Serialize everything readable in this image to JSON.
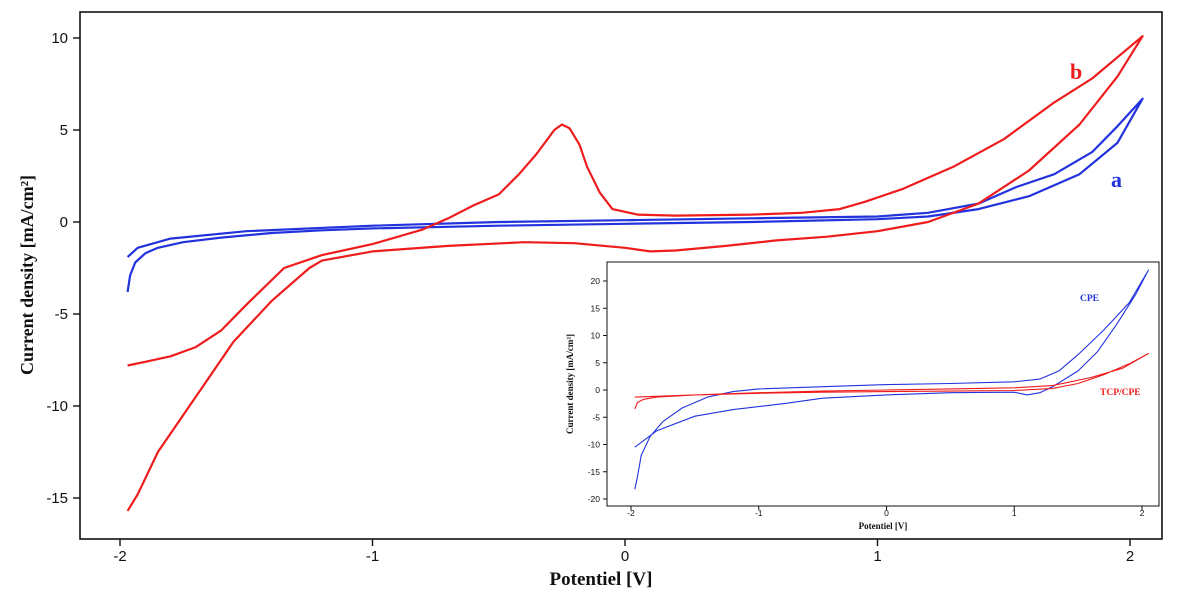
{
  "colors": {
    "a": "#2233dd",
    "b": "#ee1c1c",
    "axis": "#111111"
  },
  "chart_data": [
    {
      "type": "line",
      "xlabel": "Potentiel [V]",
      "ylabel": "Current density [mA/cm²]",
      "xlim": [
        -2.0,
        2.0
      ],
      "ylim": [
        -16.5,
        10.8
      ],
      "xticks": [
        -2,
        -1,
        0,
        1,
        2
      ],
      "yticks": [
        10,
        5,
        0,
        -5,
        -10,
        -15
      ],
      "grid": false,
      "series": [
        {
          "name": "a",
          "color": "#2233dd",
          "points": [
            [
              -1.97,
              -3.8
            ],
            [
              -1.96,
              -2.9
            ],
            [
              -1.94,
              -2.2
            ],
            [
              -1.9,
              -1.7
            ],
            [
              -1.85,
              -1.4
            ],
            [
              -1.75,
              -1.1
            ],
            [
              -1.6,
              -0.85
            ],
            [
              -1.4,
              -0.6
            ],
            [
              -1.2,
              -0.45
            ],
            [
              -1.0,
              -0.35
            ],
            [
              -0.5,
              -0.2
            ],
            [
              0.0,
              -0.1
            ],
            [
              0.5,
              0.0
            ],
            [
              1.0,
              0.15
            ],
            [
              1.2,
              0.3
            ],
            [
              1.4,
              0.7
            ],
            [
              1.6,
              1.4
            ],
            [
              1.8,
              2.6
            ],
            [
              1.95,
              4.3
            ],
            [
              2.05,
              6.7
            ],
            [
              1.95,
              5.2
            ],
            [
              1.85,
              3.8
            ],
            [
              1.7,
              2.6
            ],
            [
              1.55,
              1.9
            ],
            [
              1.4,
              1.0
            ],
            [
              1.2,
              0.5
            ],
            [
              1.0,
              0.3
            ],
            [
              0.5,
              0.2
            ],
            [
              0.0,
              0.1
            ],
            [
              -0.5,
              0.0
            ],
            [
              -1.0,
              -0.2
            ],
            [
              -1.5,
              -0.5
            ],
            [
              -1.8,
              -0.9
            ],
            [
              -1.93,
              -1.4
            ],
            [
              -1.97,
              -1.9
            ]
          ]
        },
        {
          "name": "b",
          "color": "#ee1c1c",
          "points": [
            [
              -1.97,
              -15.7
            ],
            [
              -1.93,
              -14.8
            ],
            [
              -1.85,
              -12.5
            ],
            [
              -1.7,
              -9.5
            ],
            [
              -1.55,
              -6.5
            ],
            [
              -1.4,
              -4.3
            ],
            [
              -1.25,
              -2.5
            ],
            [
              -1.2,
              -2.1
            ],
            [
              -1.0,
              -1.6
            ],
            [
              -0.7,
              -1.3
            ],
            [
              -0.4,
              -1.1
            ],
            [
              -0.2,
              -1.15
            ],
            [
              0.0,
              -1.4
            ],
            [
              0.1,
              -1.6
            ],
            [
              0.2,
              -1.55
            ],
            [
              0.4,
              -1.3
            ],
            [
              0.6,
              -1.0
            ],
            [
              0.8,
              -0.8
            ],
            [
              1.0,
              -0.5
            ],
            [
              1.2,
              0.0
            ],
            [
              1.4,
              1.0
            ],
            [
              1.6,
              2.8
            ],
            [
              1.8,
              5.3
            ],
            [
              1.95,
              7.9
            ],
            [
              2.05,
              10.1
            ],
            [
              1.85,
              7.8
            ],
            [
              1.7,
              6.5
            ],
            [
              1.5,
              4.5
            ],
            [
              1.3,
              3.0
            ],
            [
              1.1,
              1.8
            ],
            [
              0.95,
              1.1
            ],
            [
              0.9,
              0.9
            ],
            [
              0.85,
              0.7
            ],
            [
              0.7,
              0.5
            ],
            [
              0.5,
              0.4
            ],
            [
              0.2,
              0.35
            ],
            [
              0.05,
              0.4
            ],
            [
              -0.05,
              0.7
            ],
            [
              -0.1,
              1.6
            ],
            [
              -0.15,
              3.0
            ],
            [
              -0.18,
              4.2
            ],
            [
              -0.22,
              5.1
            ],
            [
              -0.25,
              5.3
            ],
            [
              -0.28,
              5.0
            ],
            [
              -0.35,
              3.7
            ],
            [
              -0.42,
              2.6
            ],
            [
              -0.5,
              1.5
            ],
            [
              -0.6,
              0.9
            ],
            [
              -0.7,
              0.2
            ],
            [
              -0.8,
              -0.4
            ],
            [
              -1.0,
              -1.2
            ],
            [
              -1.2,
              -1.8
            ],
            [
              -1.35,
              -2.5
            ],
            [
              -1.5,
              -4.5
            ],
            [
              -1.6,
              -5.9
            ],
            [
              -1.7,
              -6.8
            ],
            [
              -1.8,
              -7.3
            ],
            [
              -1.9,
              -7.6
            ],
            [
              -1.97,
              -7.8
            ]
          ]
        }
      ]
    },
    {
      "type": "line",
      "xlabel": "Potentiel [V]",
      "ylabel": "Current density [mA/cm²]",
      "xlim": [
        -2.0,
        2.0
      ],
      "ylim": [
        -20.5,
        23.5
      ],
      "xticks": [
        -2,
        -1,
        0,
        1,
        2
      ],
      "yticks": [
        20,
        15,
        10,
        5,
        0,
        -5,
        -10,
        -15,
        -20
      ],
      "grid": false,
      "series": [
        {
          "name": "CPE",
          "color": "#2233dd",
          "points": [
            [
              -1.97,
              -18.2
            ],
            [
              -1.95,
              -16
            ],
            [
              -1.92,
              -12
            ],
            [
              -1.85,
              -8.5
            ],
            [
              -1.75,
              -5.8
            ],
            [
              -1.6,
              -3.3
            ],
            [
              -1.4,
              -1.3
            ],
            [
              -1.2,
              -0.3
            ],
            [
              -1.0,
              0.2
            ],
            [
              -0.5,
              0.6
            ],
            [
              0.0,
              1.0
            ],
            [
              0.5,
              1.2
            ],
            [
              1.0,
              1.5
            ],
            [
              1.2,
              2.0
            ],
            [
              1.35,
              3.5
            ],
            [
              1.5,
              6.5
            ],
            [
              1.7,
              11
            ],
            [
              1.9,
              16
            ],
            [
              2.05,
              22
            ],
            [
              1.95,
              17.5
            ],
            [
              1.8,
              12
            ],
            [
              1.65,
              7
            ],
            [
              1.5,
              3.5
            ],
            [
              1.3,
              0.6
            ],
            [
              1.2,
              -0.5
            ],
            [
              1.1,
              -0.9
            ],
            [
              1.0,
              -0.4
            ],
            [
              0.5,
              -0.5
            ],
            [
              0.0,
              -0.9
            ],
            [
              -0.5,
              -1.5
            ],
            [
              -0.8,
              -2.5
            ],
            [
              -1.2,
              -3.6
            ],
            [
              -1.5,
              -4.8
            ],
            [
              -1.8,
              -7.5
            ],
            [
              -1.97,
              -10.5
            ]
          ]
        },
        {
          "name": "TCP/CPE",
          "color": "#ee1c1c",
          "points": [
            [
              -1.97,
              -3.5
            ],
            [
              -1.95,
              -2.3
            ],
            [
              -1.9,
              -1.7
            ],
            [
              -1.8,
              -1.3
            ],
            [
              -1.5,
              -0.9
            ],
            [
              -1.0,
              -0.6
            ],
            [
              -0.5,
              -0.4
            ],
            [
              0.0,
              -0.3
            ],
            [
              0.5,
              -0.2
            ],
            [
              1.0,
              -0.1
            ],
            [
              1.3,
              0.3
            ],
            [
              1.5,
              1.2
            ],
            [
              1.7,
              2.8
            ],
            [
              1.9,
              4.8
            ],
            [
              2.05,
              6.7
            ],
            [
              1.85,
              4.0
            ],
            [
              1.6,
              2.3
            ],
            [
              1.3,
              0.8
            ],
            [
              1.0,
              0.4
            ],
            [
              0.5,
              0.2
            ],
            [
              0.0,
              0.0
            ],
            [
              -0.5,
              -0.2
            ],
            [
              -1.0,
              -0.5
            ],
            [
              -1.5,
              -0.9
            ],
            [
              -1.97,
              -1.3
            ]
          ]
        }
      ]
    }
  ],
  "labels": {
    "series_a": "a",
    "series_b": "b",
    "inset_cpe": "CPE",
    "inset_tcp": "TCP/CPE"
  }
}
